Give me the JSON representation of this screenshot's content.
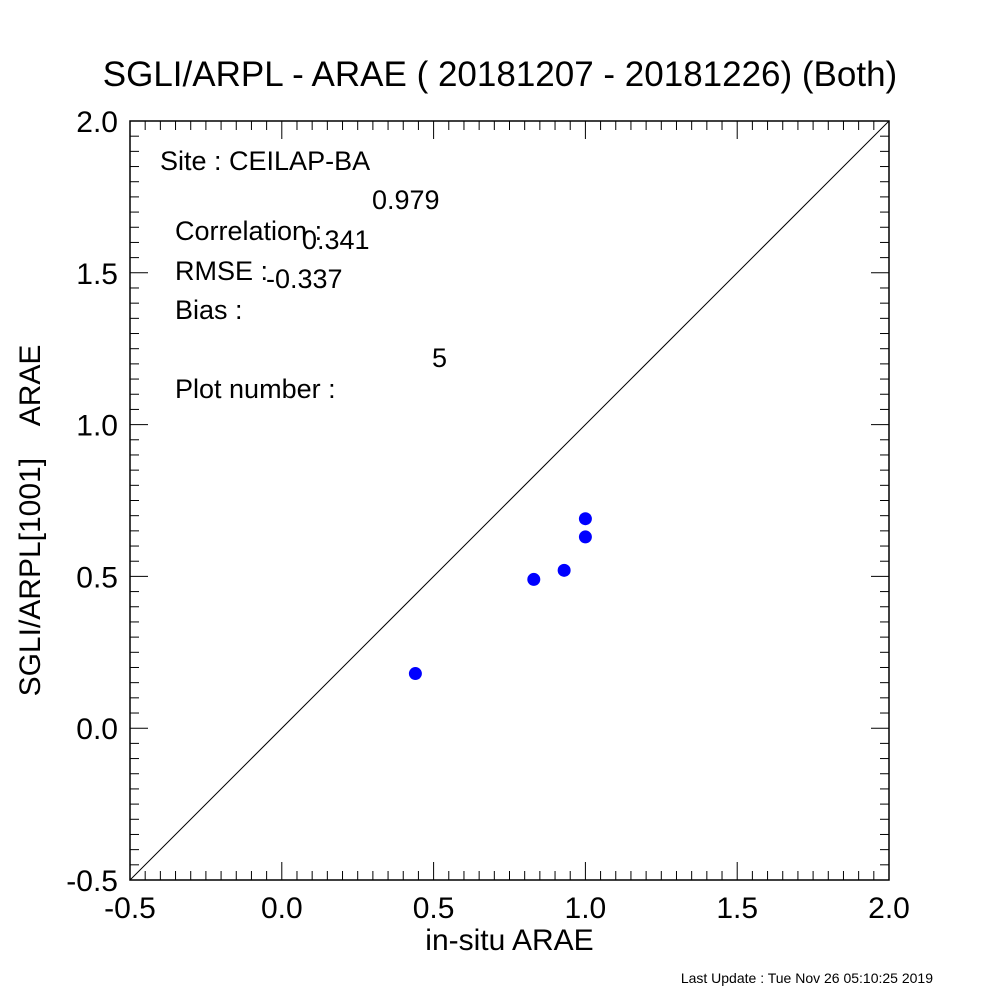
{
  "title": "SGLI/ARPL - ARAE ( 20181207 - 20181226) (Both)",
  "footer": "Last Update : Tue Nov 26 05:10:25 2019",
  "stats": {
    "site_label": "Site : CEILAP-BA",
    "correlation_label": "Correlation :",
    "correlation_value": "0.979",
    "rmse_label": "RMSE :",
    "rmse_value": "0.341",
    "bias_label": "Bias :",
    "bias_value": "-0.337",
    "plot_number_label": "Plot number :",
    "plot_number_value": "5"
  },
  "colors": {
    "points": "#0000ff",
    "axes": "#000000",
    "one_to_one_line": "#000000"
  },
  "chart_data": {
    "type": "scatter",
    "title": "SGLI/ARPL - ARAE ( 20181207 - 20181226) (Both)",
    "xlabel": "in-situ ARAE",
    "ylabel": "SGLI/ARPL[1001]    ARAE",
    "xlim": [
      -0.5,
      2.0
    ],
    "ylim": [
      -0.5,
      2.0
    ],
    "x_ticks": [
      "-0.5",
      "0.0",
      "0.5",
      "1.0",
      "1.5",
      "2.0"
    ],
    "y_ticks": [
      "-0.5",
      "0.0",
      "0.5",
      "1.0",
      "1.5",
      "2.0"
    ],
    "grid": false,
    "reference_line": "1:1",
    "points": [
      {
        "x": 0.44,
        "y": 0.18
      },
      {
        "x": 0.83,
        "y": 0.49
      },
      {
        "x": 0.93,
        "y": 0.52
      },
      {
        "x": 1.0,
        "y": 0.69
      },
      {
        "x": 1.0,
        "y": 0.63
      }
    ]
  }
}
